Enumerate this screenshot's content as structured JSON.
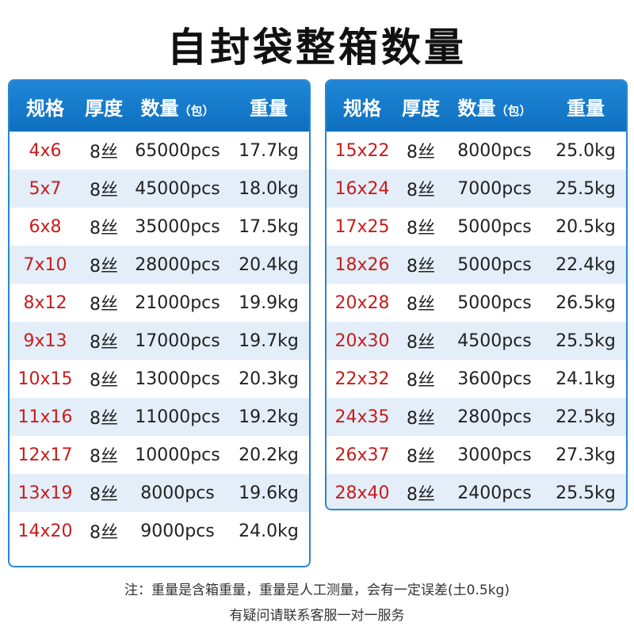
{
  "title": "自封袋整箱数量",
  "headers": {
    "spec": "规格",
    "thickness": "厚度",
    "quantity": "数量",
    "quantity_unit": "（包）",
    "weight": "重量"
  },
  "left_rows": [
    {
      "spec": "4x6",
      "thickness": "8丝",
      "qty": "65000pcs",
      "weight": "17.7kg"
    },
    {
      "spec": "5x7",
      "thickness": "8丝",
      "qty": "45000pcs",
      "weight": "18.0kg"
    },
    {
      "spec": "6x8",
      "thickness": "8丝",
      "qty": "35000pcs",
      "weight": "17.5kg"
    },
    {
      "spec": "7x10",
      "thickness": "8丝",
      "qty": "28000pcs",
      "weight": "20.4kg"
    },
    {
      "spec": "8x12",
      "thickness": "8丝",
      "qty": "21000pcs",
      "weight": "19.9kg"
    },
    {
      "spec": "9x13",
      "thickness": "8丝",
      "qty": "17000pcs",
      "weight": "19.7kg"
    },
    {
      "spec": "10x15",
      "thickness": "8丝",
      "qty": "13000pcs",
      "weight": "20.3kg"
    },
    {
      "spec": "11x16",
      "thickness": "8丝",
      "qty": "11000pcs",
      "weight": "19.2kg"
    },
    {
      "spec": "12x17",
      "thickness": "8丝",
      "qty": "10000pcs",
      "weight": "20.2kg"
    },
    {
      "spec": "13x19",
      "thickness": "8丝",
      "qty": "8000pcs",
      "weight": "19.6kg"
    },
    {
      "spec": "14x20",
      "thickness": "8丝",
      "qty": "9000pcs",
      "weight": "24.0kg"
    }
  ],
  "right_rows": [
    {
      "spec": "15x22",
      "thickness": "8丝",
      "qty": "8000pcs",
      "weight": "25.0kg"
    },
    {
      "spec": "16x24",
      "thickness": "8丝",
      "qty": "7000pcs",
      "weight": "25.5kg"
    },
    {
      "spec": "17x25",
      "thickness": "8丝",
      "qty": "5000pcs",
      "weight": "20.5kg"
    },
    {
      "spec": "18x26",
      "thickness": "8丝",
      "qty": "5000pcs",
      "weight": "22.4kg"
    },
    {
      "spec": "20x28",
      "thickness": "8丝",
      "qty": "5000pcs",
      "weight": "26.5kg"
    },
    {
      "spec": "20x30",
      "thickness": "8丝",
      "qty": "4500pcs",
      "weight": "25.5kg"
    },
    {
      "spec": "22x32",
      "thickness": "8丝",
      "qty": "3600pcs",
      "weight": "24.1kg"
    },
    {
      "spec": "24x35",
      "thickness": "8丝",
      "qty": "2800pcs",
      "weight": "22.5kg"
    },
    {
      "spec": "26x37",
      "thickness": "8丝",
      "qty": "3000pcs",
      "weight": "27.3kg"
    },
    {
      "spec": "28x40",
      "thickness": "8丝",
      "qty": "2400pcs",
      "weight": "25.5kg"
    }
  ],
  "footer": {
    "note": "注：重量是含箱重量，重量是人工测量，会有一定误差(土0.5kg)",
    "service": "有疑问请联系客服一对一服务"
  },
  "colors": {
    "header_blue": "#1a7fd0",
    "spec_red": "#c81c1c",
    "alt_row": "#e3eef9"
  }
}
